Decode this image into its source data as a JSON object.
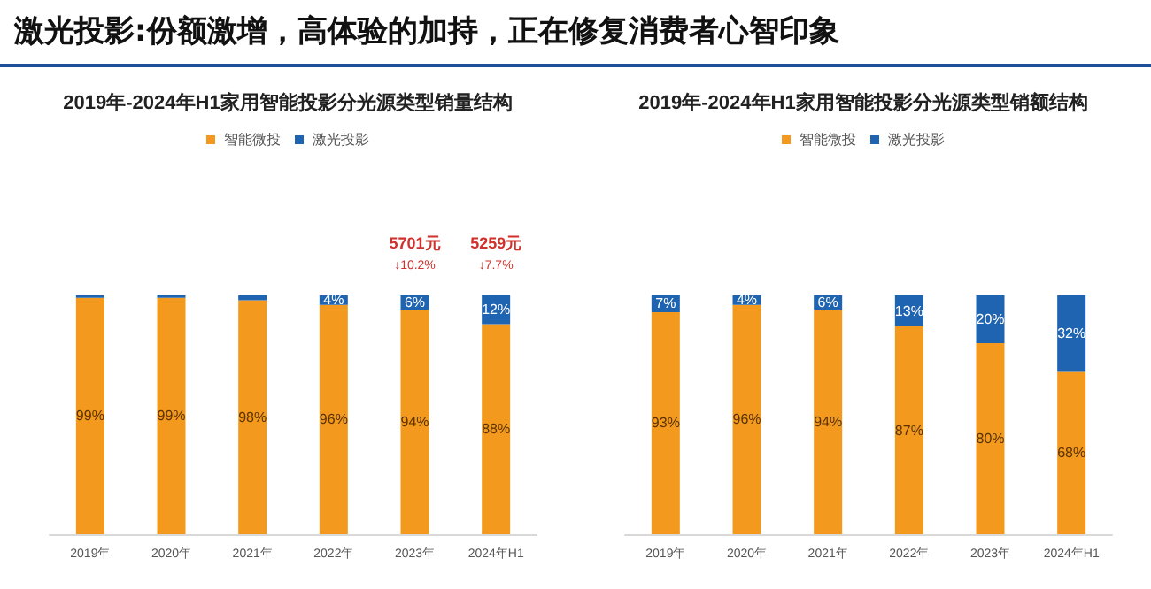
{
  "chart_data": [
    {
      "type": "bar",
      "title": "2019年-2024年H1家用智能投影分光源类型销量结构",
      "categories": [
        "2019年",
        "2020年",
        "2021年",
        "2022年",
        "2023年",
        "2024年H1"
      ],
      "stacked": true,
      "legend": "top",
      "series": [
        {
          "name": "智能微投",
          "color": "#f39a1e",
          "values": [
            99,
            99,
            98,
            96,
            94,
            88
          ],
          "value_labels": [
            "99%",
            "99%",
            "98%",
            "96%",
            "94%",
            "88%"
          ]
        },
        {
          "name": "激光投影",
          "color": "#1f64b0",
          "values": [
            1,
            1,
            2,
            4,
            6,
            12
          ],
          "value_labels": [
            null,
            null,
            null,
            "4%",
            "6%",
            "12%"
          ]
        }
      ],
      "annotations": [
        "激光投影:份额激增，高体验的加持，正在修复消费者心智印象",
        "5701元\n↓10.2%",
        "5259元\n↓7.7%"
      ]
    },
    {
      "type": "bar",
      "title": "2019年-2024年H1家用智能投影分光源类型销额结构",
      "categories": [
        "2019年",
        "2020年",
        "2021年",
        "2022年",
        "2023年",
        "2024年H1"
      ],
      "stacked": true,
      "legend": "top",
      "series": [
        {
          "name": "智能微投",
          "color": "#f39a1e",
          "values": [
            93,
            96,
            94,
            87,
            80,
            68
          ],
          "value_labels": [
            "93%",
            "96%",
            "94%",
            "87%",
            "80%",
            "68%"
          ]
        },
        {
          "name": "激光投影",
          "color": "#1f64b0",
          "values": [
            7,
            4,
            6,
            13,
            20,
            32
          ],
          "value_labels": [
            "7%",
            "4%",
            "6%",
            "13%",
            "20%",
            "32%"
          ]
        }
      ]
    }
  ]
}
